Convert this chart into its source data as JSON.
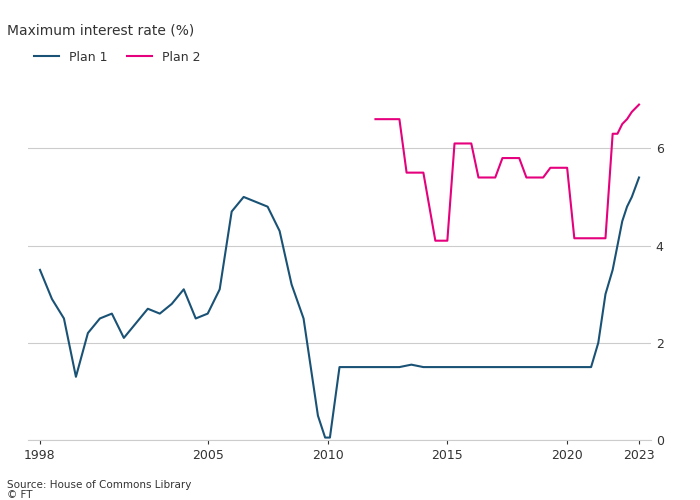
{
  "title": "Maximum interest rate (%)",
  "source": "Source: House of Commons Library",
  "copyright": "© FT",
  "plan1_color": "#1a5276",
  "plan2_color": "#e5007d",
  "background_color": "#ffffff",
  "text_color": "#333333",
  "grid_color": "#cccccc",
  "plan1_x": [
    1998,
    1998.5,
    1999,
    1999.5,
    2000,
    2000.5,
    2001,
    2001.5,
    2002,
    2002.5,
    2003,
    2003.5,
    2004,
    2004.5,
    2005,
    2005.5,
    2006,
    2006.5,
    2007,
    2007.5,
    2008,
    2008.5,
    2009,
    2009.3,
    2009.6,
    2009.9,
    2010.1,
    2010.5,
    2011,
    2011.5,
    2012,
    2012.5,
    2013,
    2013.5,
    2014,
    2014.5,
    2015,
    2015.5,
    2016,
    2016.5,
    2017,
    2017.5,
    2018,
    2018.5,
    2019,
    2019.5,
    2020,
    2020.5,
    2021,
    2021.3,
    2021.6,
    2021.9,
    2022.1,
    2022.3,
    2022.5,
    2022.7,
    2023
  ],
  "plan1_y": [
    3.5,
    2.9,
    2.5,
    1.3,
    2.2,
    2.5,
    2.6,
    2.1,
    2.4,
    2.7,
    2.6,
    2.8,
    3.1,
    2.5,
    2.6,
    3.1,
    4.7,
    5.0,
    4.9,
    4.8,
    4.3,
    3.2,
    2.5,
    1.5,
    0.5,
    0.05,
    0.05,
    1.5,
    1.5,
    1.5,
    1.5,
    1.5,
    1.5,
    1.55,
    1.5,
    1.5,
    1.5,
    1.5,
    1.5,
    1.5,
    1.5,
    1.5,
    1.5,
    1.5,
    1.5,
    1.5,
    1.5,
    1.5,
    1.5,
    2.0,
    3.0,
    3.5,
    4.0,
    4.5,
    4.8,
    5.0,
    5.4
  ],
  "plan2_x": [
    2012,
    2012.5,
    2013,
    2013.3,
    2013.6,
    2014,
    2014.5,
    2015,
    2015.3,
    2015.6,
    2016,
    2016.3,
    2016.6,
    2017,
    2017.3,
    2017.6,
    2018,
    2018.3,
    2018.6,
    2019,
    2019.3,
    2019.6,
    2020,
    2020.3,
    2020.6,
    2021,
    2021.3,
    2021.6,
    2021.9,
    2022.1,
    2022.3,
    2022.5,
    2022.7,
    2023
  ],
  "plan2_y": [
    6.6,
    6.6,
    6.6,
    5.5,
    5.5,
    5.5,
    4.1,
    4.1,
    6.1,
    6.1,
    6.1,
    5.4,
    5.4,
    5.4,
    5.8,
    5.8,
    5.8,
    5.4,
    5.4,
    5.4,
    5.6,
    5.6,
    5.6,
    4.15,
    4.15,
    4.15,
    4.15,
    4.15,
    6.3,
    6.3,
    6.5,
    6.6,
    6.75,
    6.9
  ],
  "xlim": [
    1997.5,
    2023.5
  ],
  "ylim": [
    0,
    7.2
  ],
  "yticks": [
    0,
    2,
    4,
    6
  ],
  "xticks": [
    1998,
    2005,
    2010,
    2015,
    2020,
    2023
  ]
}
